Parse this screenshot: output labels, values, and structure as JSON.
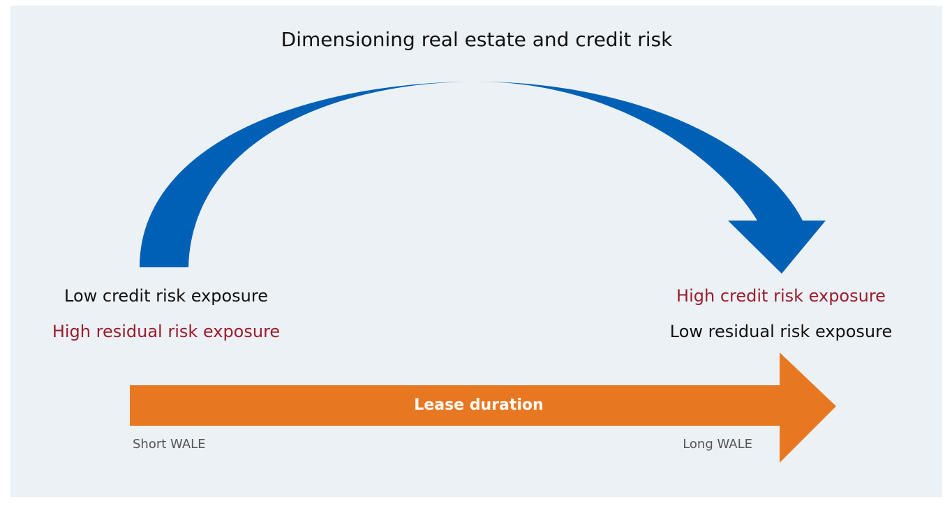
{
  "title": "Dimensioning real estate and credit risk",
  "left": {
    "credit_risk": "Low credit risk exposure",
    "residual_risk": "High residual risk exposure"
  },
  "right": {
    "credit_risk": "High credit risk exposure",
    "residual_risk": "Low residual risk exposure"
  },
  "arrow": {
    "label": "Lease duration",
    "start": "Short WALE",
    "end": "Long WALE"
  }
}
